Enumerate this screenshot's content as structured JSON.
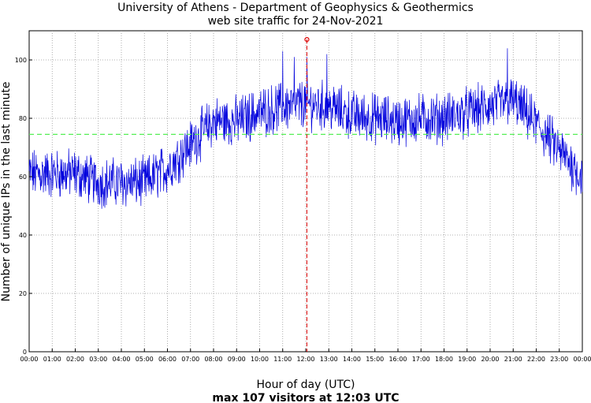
{
  "chart_data": {
    "type": "line",
    "title": "University of Athens - Department of Geophysics & Geothermics",
    "subtitle": "web site traffic for 24-Nov-2021",
    "xlabel": "Hour of day (UTC)",
    "ylabel": "Number of unique IPs in the last minute",
    "footer": "max 107 visitors at 12:03 UTC",
    "xlim_hours": [
      0,
      24
    ],
    "ylim": [
      0,
      110
    ],
    "x_tick_labels": [
      "00:00",
      "01:00",
      "02:00",
      "03:00",
      "04:00",
      "05:00",
      "06:00",
      "07:00",
      "08:00",
      "09:00",
      "10:00",
      "11:00",
      "12:00",
      "13:00",
      "14:00",
      "15:00",
      "16:00",
      "17:00",
      "18:00",
      "19:00",
      "20:00",
      "21:00",
      "22:00",
      "23:00",
      "00:00"
    ],
    "y_ticks": [
      0,
      20,
      40,
      60,
      80,
      100
    ],
    "grid": true,
    "mean_line": 74.5,
    "max_point": {
      "time": "12:03",
      "value": 107
    },
    "colors": {
      "series": "#0000dd",
      "mean": "#55ee55",
      "max": "#dd0000",
      "grid": "#999999"
    },
    "series_hourly": [
      {
        "hour": "00:00",
        "value": 61
      },
      {
        "hour": "01:00",
        "value": 61
      },
      {
        "hour": "02:00",
        "value": 61
      },
      {
        "hour": "03:00",
        "value": 58
      },
      {
        "hour": "04:00",
        "value": 58
      },
      {
        "hour": "05:00",
        "value": 58
      },
      {
        "hour": "06:00",
        "value": 63
      },
      {
        "hour": "07:00",
        "value": 71
      },
      {
        "hour": "08:00",
        "value": 79
      },
      {
        "hour": "09:00",
        "value": 79
      },
      {
        "hour": "10:00",
        "value": 82
      },
      {
        "hour": "11:00",
        "value": 84
      },
      {
        "hour": "12:00",
        "value": 85
      },
      {
        "hour": "13:00",
        "value": 84
      },
      {
        "hour": "14:00",
        "value": 81
      },
      {
        "hour": "15:00",
        "value": 80
      },
      {
        "hour": "16:00",
        "value": 79
      },
      {
        "hour": "17:00",
        "value": 80
      },
      {
        "hour": "18:00",
        "value": 80
      },
      {
        "hour": "19:00",
        "value": 82
      },
      {
        "hour": "20:00",
        "value": 84
      },
      {
        "hour": "21:00",
        "value": 86
      },
      {
        "hour": "22:00",
        "value": 78
      },
      {
        "hour": "23:00",
        "value": 69
      },
      {
        "hour": "24:00",
        "value": 60
      }
    ],
    "spikes": [
      {
        "time": "11:00",
        "value": 103
      },
      {
        "time": "11:30",
        "value": 101
      },
      {
        "time": "12:55",
        "value": 102
      },
      {
        "time": "20:45",
        "value": 104
      }
    ]
  }
}
